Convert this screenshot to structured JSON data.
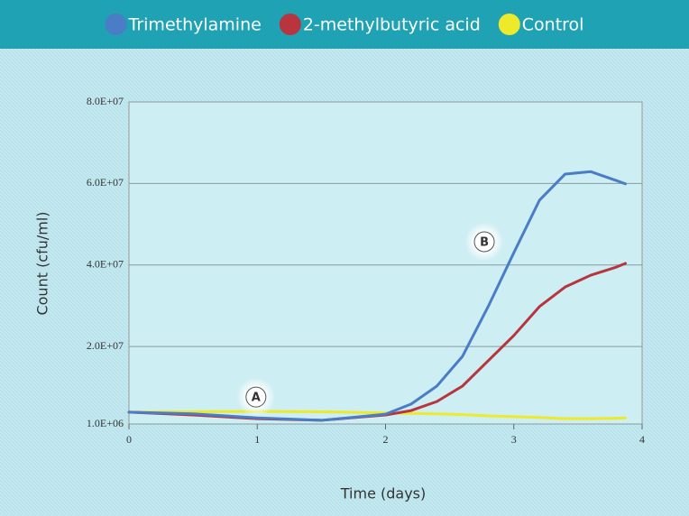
{
  "chart_data": {
    "type": "line",
    "x": [
      0,
      0.5,
      1,
      1.5,
      2,
      2.2,
      2.4,
      2.6,
      2.8,
      3,
      3.2,
      3.4,
      3.6,
      3.8,
      3.87
    ],
    "series": [
      {
        "name": "Trimethylamine",
        "color": "#4a7dc6",
        "values": [
          3900000,
          3500000,
          2500000,
          1900000,
          3400000,
          5900000,
          10300000,
          17600000,
          29800000,
          43000000,
          55900000,
          62300000,
          62900000,
          60700000,
          59900000
        ]
      },
      {
        "name": "2-methylbutyric acid",
        "color": "#b8343e",
        "values": [
          3900000,
          3200000,
          2300000,
          1900000,
          3200000,
          4300000,
          6500000,
          10300000,
          16500000,
          22700000,
          29800000,
          34600000,
          37500000,
          39500000,
          40400000
        ]
      },
      {
        "name": "Control",
        "color": "#ecea2a",
        "values": [
          3900000,
          4000000,
          4100000,
          4000000,
          3700000,
          3600000,
          3500000,
          3300000,
          3000000,
          2800000,
          2600000,
          2300000,
          2300000,
          2400000,
          2500000
        ]
      }
    ],
    "xlabel": "Time (days)",
    "ylabel": "Count (cfu/ml)",
    "xlim": [
      0,
      4
    ],
    "xticks": [
      0,
      1,
      2,
      3,
      4
    ],
    "ylim": [
      1000000,
      80000000
    ],
    "yticks": [
      {
        "value": 1000000,
        "label": "1.0E+06"
      },
      {
        "value": 20000000,
        "label": "2.0E+07"
      },
      {
        "value": 40000000,
        "label": "4.0E+07"
      },
      {
        "value": 60000000,
        "label": "6.0E+07"
      },
      {
        "value": 80000000,
        "label": "8.0E+07"
      }
    ],
    "grid": true,
    "legend": "top",
    "annotations": [
      {
        "text": "A",
        "x": 0.99,
        "y": 7600000
      },
      {
        "text": "B",
        "x": 2.77,
        "y": 45700000
      }
    ]
  }
}
